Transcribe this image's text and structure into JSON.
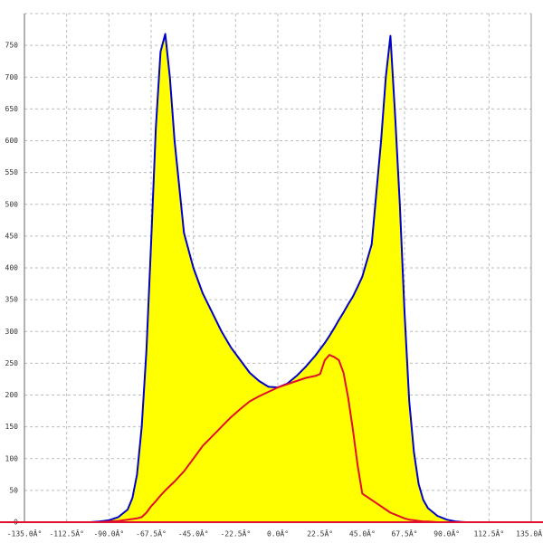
{
  "chart_data": {
    "type": "area",
    "x": [
      -100,
      -95,
      -90,
      -85,
      -80,
      -77.5,
      -75,
      -72.5,
      -70,
      -67.5,
      -65,
      -62.5,
      -60,
      -57.5,
      -55,
      -50,
      -45,
      -40,
      -35,
      -30,
      -25,
      -20,
      -15,
      -10,
      -5,
      0,
      5,
      10,
      15,
      20,
      22.5,
      25,
      27.5,
      30,
      32.5,
      35,
      37.5,
      40,
      42.5,
      45,
      50,
      55,
      57.5,
      60,
      62.5,
      65,
      67.5,
      70,
      72.5,
      75,
      77.5,
      80,
      85,
      90,
      95,
      100
    ],
    "series": [
      {
        "color": "#0000c8",
        "fill": "#ffff00",
        "values": [
          0,
          1,
          3,
          8,
          20,
          38,
          75,
          150,
          270,
          440,
          620,
          740,
          768,
          700,
          600,
          455,
          400,
          360,
          330,
          300,
          275,
          255,
          235,
          222,
          213,
          212,
          218,
          230,
          245,
          262,
          272,
          282,
          293,
          305,
          318,
          330,
          343,
          355,
          370,
          386,
          437,
          600,
          700,
          765,
          640,
          500,
          330,
          190,
          110,
          60,
          35,
          22,
          10,
          4,
          1,
          0
        ]
      },
      {
        "color": "#e0102a",
        "values": [
          0,
          0,
          1,
          2,
          4,
          5,
          6,
          8,
          15,
          25,
          33,
          42,
          50,
          57,
          64,
          80,
          100,
          120,
          135,
          150,
          165,
          178,
          190,
          198,
          205,
          212,
          217,
          222,
          227,
          230,
          233,
          255,
          263,
          260,
          255,
          235,
          195,
          145,
          90,
          45,
          35,
          25,
          20,
          15,
          12,
          9,
          6,
          4,
          3,
          2,
          1,
          1,
          0,
          0,
          0,
          0
        ]
      }
    ],
    "xlim": [
      -135,
      135
    ],
    "xticks": [
      {
        "value": -135,
        "label": "-135.0Â°"
      },
      {
        "value": -112.5,
        "label": "-112.5Â°"
      },
      {
        "value": -90,
        "label": "-90.0Â°"
      },
      {
        "value": -67.5,
        "label": "-67.5Â°"
      },
      {
        "value": -45,
        "label": "-45.0Â°"
      },
      {
        "value": -22.5,
        "label": "-22.5Â°"
      },
      {
        "value": 0,
        "label": "0.0Â°"
      },
      {
        "value": 22.5,
        "label": "22.5Â°"
      },
      {
        "value": 45,
        "label": "45.0Â°"
      },
      {
        "value": 67.5,
        "label": "67.5Â°"
      },
      {
        "value": 90,
        "label": "90.0Â°"
      },
      {
        "value": 112.5,
        "label": "112.5Â°"
      },
      {
        "value": 135,
        "label": "135.0Â°"
      }
    ],
    "ylim": [
      0,
      800
    ],
    "yticks": [
      0,
      50,
      100,
      150,
      200,
      250,
      300,
      350,
      400,
      450,
      500,
      550,
      600,
      650,
      700,
      750
    ],
    "grid": true
  }
}
